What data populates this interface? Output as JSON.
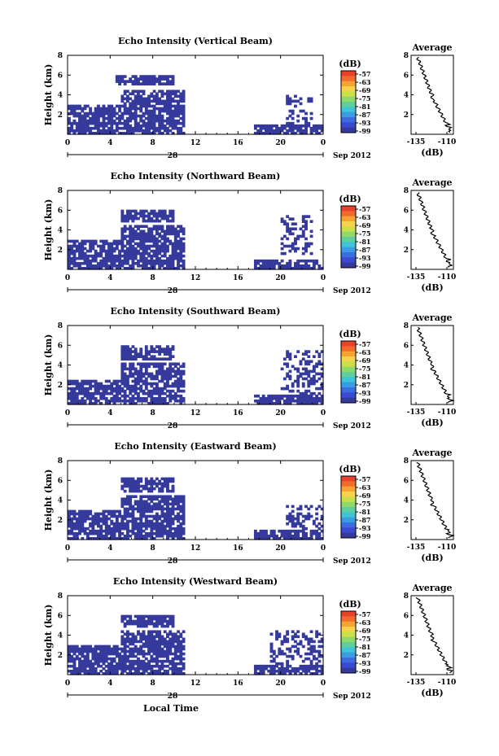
{
  "figure": {
    "xlabel": "Local Time",
    "date_label": "Sep 2012",
    "day_label": "28",
    "colorbar": {
      "unit_label": "(dB)",
      "ticks": [
        "-57",
        "-63",
        "-69",
        "-75",
        "-81",
        "-87",
        "-93",
        "-99"
      ],
      "colors": [
        "#e8412c",
        "#f26a2c",
        "#f7a331",
        "#f6d34a",
        "#c9e04a",
        "#8fd86a",
        "#5fcf9e",
        "#3fc3d6",
        "#3b9be5",
        "#3b6de0",
        "#3a4ad2",
        "#353a9c"
      ]
    }
  },
  "chart_data": [
    {
      "type": "heatmap",
      "title": "Echo Intensity (Vertical Beam)",
      "ylabel": "Height (km)",
      "xlim": [
        0,
        24
      ],
      "ylim": [
        0,
        8
      ],
      "xticks": [
        "0",
        "4",
        "8",
        "12",
        "16",
        "20",
        "0"
      ],
      "yticks": [
        "2",
        "4",
        "6",
        "8"
      ],
      "dominant_value_db": -99,
      "echo_regions": [
        {
          "t": [
            0,
            11
          ],
          "h": [
            0,
            3
          ]
        },
        {
          "t": [
            5,
            11
          ],
          "h": [
            3,
            4.5
          ]
        },
        {
          "t": [
            4.5,
            10
          ],
          "h": [
            5,
            6
          ]
        },
        {
          "t": [
            17.5,
            24
          ],
          "h": [
            0,
            1
          ]
        },
        {
          "t": [
            20.5,
            23
          ],
          "h": [
            1,
            4
          ]
        }
      ],
      "profile": {
        "title": "Average",
        "xlabel": "(dB)",
        "xticks": [
          "-135",
          "-110"
        ],
        "yticks": [
          "2",
          "4",
          "6",
          "8"
        ]
      }
    },
    {
      "type": "heatmap",
      "title": "Echo Intensity (Northward Beam)",
      "ylabel": "Height (km)",
      "xlim": [
        0,
        24
      ],
      "ylim": [
        0,
        8
      ],
      "xticks": [
        "0",
        "4",
        "8",
        "12",
        "16",
        "20",
        "0"
      ],
      "yticks": [
        "2",
        "4",
        "6",
        "8"
      ],
      "dominant_value_db": -99,
      "echo_regions": [
        {
          "t": [
            0,
            11
          ],
          "h": [
            0,
            3
          ]
        },
        {
          "t": [
            5,
            11
          ],
          "h": [
            3,
            4.5
          ]
        },
        {
          "t": [
            5,
            10
          ],
          "h": [
            4.8,
            6
          ]
        },
        {
          "t": [
            17.5,
            24
          ],
          "h": [
            0,
            0.8
          ]
        },
        {
          "t": [
            20,
            23
          ],
          "h": [
            1.5,
            5.5
          ]
        }
      ],
      "profile": {
        "title": "Average",
        "xlabel": "(dB)",
        "xticks": [
          "-135",
          "-110"
        ],
        "yticks": [
          "2",
          "4",
          "6",
          "8"
        ]
      }
    },
    {
      "type": "heatmap",
      "title": "Echo Intensity (Southward Beam)",
      "ylabel": "Height (km)",
      "xlim": [
        0,
        24
      ],
      "ylim": [
        0,
        8
      ],
      "xticks": [
        "0",
        "4",
        "8",
        "12",
        "16",
        "20",
        "0"
      ],
      "yticks": [
        "2",
        "4",
        "6",
        "8"
      ],
      "dominant_value_db": -99,
      "echo_regions": [
        {
          "t": [
            0,
            11
          ],
          "h": [
            0,
            2.5
          ]
        },
        {
          "t": [
            5,
            11
          ],
          "h": [
            2.5,
            4.2
          ]
        },
        {
          "t": [
            5,
            10
          ],
          "h": [
            4.5,
            6
          ]
        },
        {
          "t": [
            17.5,
            24
          ],
          "h": [
            0,
            1
          ]
        },
        {
          "t": [
            20,
            24
          ],
          "h": [
            1,
            5.5
          ]
        }
      ],
      "profile": {
        "title": "Average",
        "xlabel": "(dB)",
        "xticks": [
          "-135",
          "-110"
        ],
        "yticks": [
          "2",
          "4",
          "6",
          "8"
        ]
      }
    },
    {
      "type": "heatmap",
      "title": "Echo Intensity (Eastward Beam)",
      "ylabel": "Height (km)",
      "xlim": [
        0,
        24
      ],
      "ylim": [
        0,
        8
      ],
      "xticks": [
        "0",
        "4",
        "8",
        "12",
        "16",
        "20",
        "0"
      ],
      "yticks": [
        "2",
        "4",
        "6",
        "8"
      ],
      "dominant_value_db": -99,
      "echo_regions": [
        {
          "t": [
            0,
            11
          ],
          "h": [
            0,
            3
          ]
        },
        {
          "t": [
            5,
            11
          ],
          "h": [
            3,
            4.5
          ]
        },
        {
          "t": [
            5,
            10
          ],
          "h": [
            4.8,
            6.2
          ]
        },
        {
          "t": [
            17.5,
            24
          ],
          "h": [
            0,
            1
          ]
        },
        {
          "t": [
            20.5,
            24
          ],
          "h": [
            1,
            3.5
          ]
        }
      ],
      "profile": {
        "title": "Average",
        "xlabel": "(dB)",
        "xticks": [
          "-135",
          "-110"
        ],
        "yticks": [
          "2",
          "4",
          "6",
          "8"
        ]
      }
    },
    {
      "type": "heatmap",
      "title": "Echo Intensity (Westward Beam)",
      "ylabel": "Height (km)",
      "xlim": [
        0,
        24
      ],
      "ylim": [
        0,
        8
      ],
      "xticks": [
        "0",
        "4",
        "8",
        "12",
        "16",
        "20",
        "0"
      ],
      "yticks": [
        "2",
        "4",
        "6",
        "8"
      ],
      "dominant_value_db": -99,
      "echo_regions": [
        {
          "t": [
            0,
            11
          ],
          "h": [
            0,
            3
          ]
        },
        {
          "t": [
            5,
            11
          ],
          "h": [
            3,
            4.5
          ]
        },
        {
          "t": [
            5,
            10
          ],
          "h": [
            4.8,
            6
          ]
        },
        {
          "t": [
            17.5,
            24
          ],
          "h": [
            0,
            1
          ]
        },
        {
          "t": [
            19,
            24
          ],
          "h": [
            1,
            4.5
          ]
        }
      ],
      "profile": {
        "title": "Average",
        "xlabel": "(dB)",
        "xticks": [
          "-135",
          "-110"
        ],
        "yticks": [
          "2",
          "4",
          "6",
          "8"
        ]
      }
    }
  ]
}
